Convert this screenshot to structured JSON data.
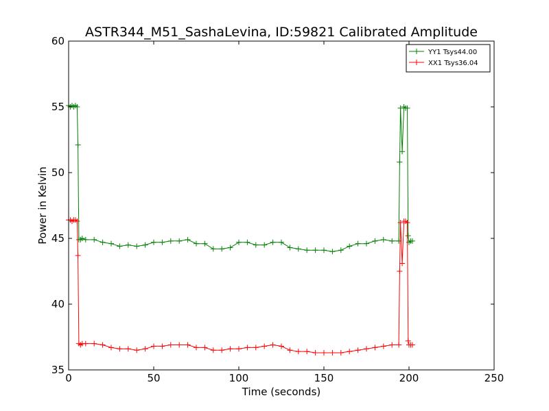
{
  "chart_data": {
    "type": "line",
    "title": "ASTR344_M51_SashaLevina, ID:59821 Calibrated Amplitude",
    "xlabel": "Time (seconds)",
    "ylabel": "Power in Kelvin",
    "xlim": [
      0,
      250
    ],
    "ylim": [
      35,
      60
    ],
    "xticks": [
      "0",
      "50",
      "100",
      "150",
      "200",
      "250"
    ],
    "yticks": [
      "35",
      "40",
      "45",
      "50",
      "55",
      "60"
    ],
    "grid": false,
    "legend_position": "top-right",
    "series": [
      {
        "name": "YY1 Tsys44.00",
        "color": "#008000",
        "marker": "+",
        "x": [
          0,
          1,
          2,
          3,
          4,
          5,
          5.5,
          6,
          7,
          8,
          10,
          15,
          20,
          25,
          30,
          35,
          40,
          45,
          50,
          55,
          60,
          65,
          70,
          75,
          80,
          85,
          90,
          95,
          100,
          105,
          110,
          115,
          120,
          125,
          130,
          135,
          140,
          145,
          150,
          155,
          160,
          165,
          170,
          175,
          180,
          185,
          190,
          194,
          194.5,
          195,
          196,
          197,
          198,
          199,
          199.5,
          200,
          201,
          202
        ],
        "y": [
          55.1,
          55.0,
          55.1,
          55.0,
          55.1,
          55.0,
          52.1,
          44.9,
          44.9,
          45.0,
          44.9,
          44.9,
          44.7,
          44.6,
          44.4,
          44.5,
          44.4,
          44.5,
          44.7,
          44.7,
          44.8,
          44.8,
          44.9,
          44.6,
          44.6,
          44.2,
          44.2,
          44.3,
          44.7,
          44.7,
          44.5,
          44.5,
          44.7,
          44.7,
          44.3,
          44.2,
          44.1,
          44.1,
          44.1,
          44.0,
          44.1,
          44.4,
          44.6,
          44.6,
          44.8,
          44.9,
          44.8,
          44.8,
          50.8,
          54.9,
          51.6,
          55.0,
          54.9,
          54.9,
          45.2,
          44.7,
          44.8,
          44.8
        ]
      },
      {
        "name": "XX1 Tsys36.04",
        "color": "#ff0000",
        "marker": "+",
        "x": [
          0,
          1,
          2,
          3,
          4,
          5,
          5.5,
          6,
          7,
          8,
          10,
          15,
          20,
          25,
          30,
          35,
          40,
          45,
          50,
          55,
          60,
          65,
          70,
          75,
          80,
          85,
          90,
          95,
          100,
          105,
          110,
          115,
          120,
          125,
          130,
          135,
          140,
          145,
          150,
          155,
          160,
          165,
          170,
          175,
          180,
          185,
          190,
          194,
          194.5,
          195,
          196,
          197,
          198,
          199,
          199.5,
          200,
          201,
          202
        ],
        "y": [
          46.4,
          46.4,
          46.3,
          46.4,
          46.4,
          46.3,
          43.7,
          37.0,
          36.9,
          37.0,
          37.0,
          37.0,
          36.9,
          36.7,
          36.6,
          36.6,
          36.5,
          36.6,
          36.8,
          36.8,
          36.9,
          36.9,
          36.9,
          36.7,
          36.7,
          36.5,
          36.5,
          36.6,
          36.6,
          36.7,
          36.7,
          36.8,
          36.9,
          36.8,
          36.5,
          36.4,
          36.4,
          36.3,
          36.3,
          36.3,
          36.3,
          36.4,
          36.5,
          36.6,
          36.7,
          36.8,
          36.9,
          36.9,
          42.5,
          46.2,
          43.1,
          46.3,
          46.3,
          46.2,
          37.2,
          36.9,
          36.9,
          36.9
        ]
      }
    ]
  }
}
